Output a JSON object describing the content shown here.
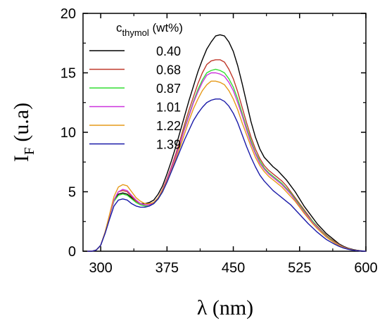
{
  "chart_data": {
    "type": "line",
    "xlabel": "λ (nm)",
    "ylabel_main": "I",
    "ylabel_sub": "F",
    "ylabel_rest": " (u.a)",
    "xlim": [
      280,
      600
    ],
    "ylim": [
      0,
      20
    ],
    "x_ticks": [
      300,
      375,
      450,
      525,
      600
    ],
    "y_ticks": [
      0,
      5,
      10,
      15,
      20
    ],
    "x_tick_labels": [
      "300",
      "375",
      "450",
      "525",
      "600"
    ],
    "y_tick_labels": [
      "0",
      "5",
      "10",
      "15",
      "20"
    ],
    "grid": false,
    "legend": {
      "title_main": "c",
      "title_sub": "thymol",
      "title_rest": " (wt%)",
      "placement": "top-left"
    },
    "x": [
      285,
      290,
      295,
      300,
      305,
      310,
      315,
      320,
      325,
      330,
      335,
      340,
      345,
      350,
      355,
      360,
      365,
      370,
      375,
      380,
      385,
      390,
      395,
      400,
      405,
      410,
      415,
      420,
      425,
      430,
      435,
      440,
      445,
      450,
      455,
      460,
      465,
      470,
      475,
      480,
      485,
      490,
      495,
      500,
      505,
      510,
      515,
      520,
      525,
      530,
      535,
      540,
      545,
      550,
      555,
      560,
      565,
      570,
      575,
      580,
      585,
      590,
      595,
      600
    ],
    "series": [
      {
        "name": "0.40",
        "color": "#000000",
        "values": [
          0.0,
          0.0,
          0.1,
          0.5,
          1.6,
          3.0,
          4.3,
          4.8,
          4.9,
          4.8,
          4.5,
          4.2,
          4.0,
          4.0,
          4.1,
          4.3,
          4.8,
          5.5,
          6.5,
          7.6,
          8.8,
          10.1,
          11.4,
          12.7,
          13.9,
          15.1,
          16.1,
          17.0,
          17.6,
          18.1,
          18.2,
          18.1,
          17.6,
          16.8,
          15.6,
          14.1,
          12.5,
          10.9,
          9.6,
          8.6,
          7.9,
          7.5,
          7.1,
          6.8,
          6.4,
          6.0,
          5.5,
          5.0,
          4.4,
          3.8,
          3.3,
          2.8,
          2.3,
          1.9,
          1.5,
          1.2,
          0.9,
          0.6,
          0.4,
          0.25,
          0.15,
          0.08,
          0.03,
          0.0
        ]
      },
      {
        "name": "0.68",
        "color": "#c0392b",
        "values": [
          0.0,
          0.0,
          0.1,
          0.5,
          1.6,
          3.0,
          4.3,
          5.0,
          5.1,
          5.0,
          4.6,
          4.2,
          4.0,
          3.9,
          3.9,
          4.1,
          4.5,
          5.2,
          6.1,
          7.1,
          8.2,
          9.4,
          10.7,
          11.9,
          13.0,
          14.1,
          15.0,
          15.7,
          16.0,
          16.1,
          16.1,
          15.9,
          15.3,
          14.5,
          13.4,
          12.1,
          10.8,
          9.6,
          8.6,
          7.8,
          7.2,
          6.8,
          6.5,
          6.2,
          5.9,
          5.5,
          5.0,
          4.5,
          4.0,
          3.5,
          3.0,
          2.5,
          2.1,
          1.7,
          1.35,
          1.05,
          0.8,
          0.55,
          0.35,
          0.22,
          0.12,
          0.06,
          0.02,
          0.0
        ]
      },
      {
        "name": "0.87",
        "color": "#33dd33",
        "values": [
          0.0,
          0.0,
          0.1,
          0.5,
          1.6,
          3.0,
          4.2,
          4.7,
          4.8,
          4.7,
          4.4,
          4.1,
          3.9,
          3.8,
          3.8,
          4.0,
          4.4,
          5.0,
          5.9,
          6.9,
          8.0,
          9.1,
          10.4,
          11.5,
          12.6,
          13.6,
          14.4,
          15.0,
          15.2,
          15.3,
          15.2,
          15.0,
          14.5,
          13.8,
          12.8,
          11.6,
          10.4,
          9.3,
          8.3,
          7.6,
          7.0,
          6.6,
          6.3,
          6.0,
          5.7,
          5.3,
          4.9,
          4.4,
          3.9,
          3.4,
          2.9,
          2.5,
          2.05,
          1.65,
          1.3,
          1.0,
          0.75,
          0.52,
          0.33,
          0.2,
          0.11,
          0.05,
          0.02,
          0.0
        ]
      },
      {
        "name": "1.01",
        "color": "#cc33dd",
        "values": [
          0.0,
          0.0,
          0.1,
          0.5,
          1.6,
          3.0,
          4.3,
          5.0,
          5.2,
          5.1,
          4.7,
          4.3,
          4.0,
          3.9,
          3.9,
          4.1,
          4.5,
          5.1,
          6.0,
          7.0,
          8.0,
          9.1,
          10.3,
          11.4,
          12.5,
          13.4,
          14.2,
          14.8,
          15.0,
          15.0,
          14.9,
          14.7,
          14.2,
          13.5,
          12.5,
          11.4,
          10.2,
          9.1,
          8.2,
          7.4,
          6.9,
          6.5,
          6.2,
          5.9,
          5.6,
          5.2,
          4.8,
          4.3,
          3.8,
          3.3,
          2.85,
          2.4,
          2.0,
          1.6,
          1.25,
          0.95,
          0.72,
          0.5,
          0.32,
          0.19,
          0.1,
          0.05,
          0.02,
          0.0
        ]
      },
      {
        "name": "1.22",
        "color": "#e69a1a",
        "values": [
          0.0,
          0.0,
          0.1,
          0.5,
          1.6,
          3.1,
          4.6,
          5.4,
          5.6,
          5.5,
          5.0,
          4.5,
          4.2,
          4.0,
          4.0,
          4.1,
          4.5,
          5.1,
          5.9,
          6.8,
          7.8,
          8.8,
          9.9,
          11.0,
          12.0,
          12.8,
          13.5,
          14.0,
          14.3,
          14.3,
          14.2,
          14.0,
          13.5,
          12.8,
          11.9,
          10.8,
          9.8,
          8.8,
          7.9,
          7.2,
          6.7,
          6.3,
          6.0,
          5.7,
          5.4,
          5.0,
          4.6,
          4.2,
          3.7,
          3.2,
          2.75,
          2.3,
          1.9,
          1.55,
          1.2,
          0.92,
          0.68,
          0.47,
          0.3,
          0.18,
          0.1,
          0.05,
          0.02,
          0.0
        ]
      },
      {
        "name": "1.39",
        "color": "#1a1aa8",
        "values": [
          0.0,
          0.0,
          0.1,
          0.5,
          1.5,
          2.7,
          3.8,
          4.3,
          4.4,
          4.3,
          4.0,
          3.8,
          3.7,
          3.7,
          3.8,
          4.0,
          4.4,
          5.0,
          5.8,
          6.7,
          7.6,
          8.5,
          9.4,
          10.2,
          11.0,
          11.6,
          12.1,
          12.5,
          12.7,
          12.8,
          12.8,
          12.6,
          12.2,
          11.6,
          10.8,
          9.8,
          8.8,
          7.9,
          7.1,
          6.4,
          5.9,
          5.5,
          5.1,
          4.8,
          4.5,
          4.2,
          3.9,
          3.5,
          3.1,
          2.7,
          2.3,
          1.95,
          1.6,
          1.3,
          1.0,
          0.78,
          0.58,
          0.4,
          0.26,
          0.16,
          0.09,
          0.04,
          0.02,
          0.0
        ]
      }
    ]
  }
}
